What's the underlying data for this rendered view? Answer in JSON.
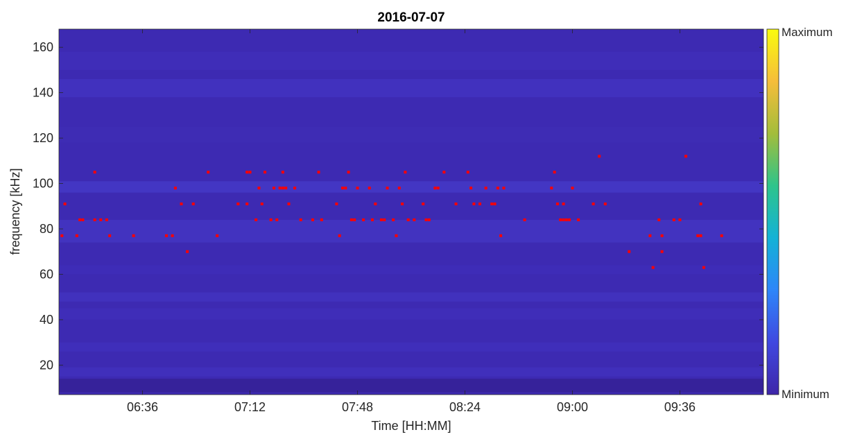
{
  "chart_data": {
    "type": "heatmap",
    "subtype": "spectrogram",
    "title": "2016-07-07",
    "xlabel": "Time [HH:MM]",
    "ylabel": "frequency [kHz]",
    "xlim": [
      "06:08",
      "10:04"
    ],
    "ylim": [
      7,
      168
    ],
    "x_ticks": [
      "06:36",
      "07:12",
      "07:48",
      "08:24",
      "09:00",
      "09:36"
    ],
    "y_ticks": [
      20,
      40,
      60,
      80,
      100,
      120,
      140,
      160
    ],
    "colorbar": {
      "colormap": "parula",
      "max_label": "Maximum",
      "min_label": "Minimum",
      "colors": [
        "#3e26a8",
        "#4048e0",
        "#2e86f9",
        "#14b2d6",
        "#2ec48b",
        "#a3bd3b",
        "#f6bd3a",
        "#f9fb0e"
      ]
    },
    "background_color": "#3d2ab2",
    "grid": false,
    "marker_color": "#ff0000",
    "detections": [
      {
        "t": "06:09",
        "f": 77
      },
      {
        "t": "06:10",
        "f": 91
      },
      {
        "t": "06:14",
        "f": 77
      },
      {
        "t": "06:15",
        "f": 84
      },
      {
        "t": "06:16",
        "f": 84
      },
      {
        "t": "06:20",
        "f": 105
      },
      {
        "t": "06:20",
        "f": 84
      },
      {
        "t": "06:22",
        "f": 84
      },
      {
        "t": "06:24",
        "f": 84
      },
      {
        "t": "06:25",
        "f": 77
      },
      {
        "t": "06:33",
        "f": 77
      },
      {
        "t": "06:44",
        "f": 77
      },
      {
        "t": "06:46",
        "f": 77
      },
      {
        "t": "06:47",
        "f": 98
      },
      {
        "t": "06:49",
        "f": 91
      },
      {
        "t": "06:51",
        "f": 70
      },
      {
        "t": "06:53",
        "f": 91
      },
      {
        "t": "06:58",
        "f": 105
      },
      {
        "t": "07:01",
        "f": 77
      },
      {
        "t": "07:08",
        "f": 91
      },
      {
        "t": "07:11",
        "f": 91
      },
      {
        "t": "07:11",
        "f": 105
      },
      {
        "t": "07:12",
        "f": 105
      },
      {
        "t": "07:14",
        "f": 84
      },
      {
        "t": "07:15",
        "f": 98
      },
      {
        "t": "07:16",
        "f": 91
      },
      {
        "t": "07:17",
        "f": 105
      },
      {
        "t": "07:19",
        "f": 84
      },
      {
        "t": "07:20",
        "f": 98
      },
      {
        "t": "07:21",
        "f": 84
      },
      {
        "t": "07:22",
        "f": 98
      },
      {
        "t": "07:23",
        "f": 98
      },
      {
        "t": "07:23",
        "f": 105
      },
      {
        "t": "07:24",
        "f": 98
      },
      {
        "t": "07:25",
        "f": 91
      },
      {
        "t": "07:27",
        "f": 98
      },
      {
        "t": "07:29",
        "f": 84
      },
      {
        "t": "07:33",
        "f": 84
      },
      {
        "t": "07:35",
        "f": 105
      },
      {
        "t": "07:36",
        "f": 84
      },
      {
        "t": "07:41",
        "f": 91
      },
      {
        "t": "07:42",
        "f": 77
      },
      {
        "t": "07:43",
        "f": 98
      },
      {
        "t": "07:44",
        "f": 98
      },
      {
        "t": "07:45",
        "f": 105
      },
      {
        "t": "07:46",
        "f": 84
      },
      {
        "t": "07:47",
        "f": 84
      },
      {
        "t": "07:48",
        "f": 98
      },
      {
        "t": "07:50",
        "f": 84
      },
      {
        "t": "07:52",
        "f": 98
      },
      {
        "t": "07:53",
        "f": 84
      },
      {
        "t": "07:54",
        "f": 91
      },
      {
        "t": "07:56",
        "f": 84
      },
      {
        "t": "07:57",
        "f": 84
      },
      {
        "t": "07:58",
        "f": 98
      },
      {
        "t": "08:00",
        "f": 84
      },
      {
        "t": "08:01",
        "f": 77
      },
      {
        "t": "08:02",
        "f": 98
      },
      {
        "t": "08:03",
        "f": 91
      },
      {
        "t": "08:04",
        "f": 105
      },
      {
        "t": "08:05",
        "f": 84
      },
      {
        "t": "08:07",
        "f": 84
      },
      {
        "t": "08:10",
        "f": 91
      },
      {
        "t": "08:11",
        "f": 84
      },
      {
        "t": "08:12",
        "f": 84
      },
      {
        "t": "08:14",
        "f": 98
      },
      {
        "t": "08:15",
        "f": 98
      },
      {
        "t": "08:17",
        "f": 105
      },
      {
        "t": "08:21",
        "f": 91
      },
      {
        "t": "08:25",
        "f": 105
      },
      {
        "t": "08:26",
        "f": 98
      },
      {
        "t": "08:27",
        "f": 91
      },
      {
        "t": "08:29",
        "f": 91
      },
      {
        "t": "08:31",
        "f": 98
      },
      {
        "t": "08:33",
        "f": 91
      },
      {
        "t": "08:34",
        "f": 91
      },
      {
        "t": "08:35",
        "f": 98
      },
      {
        "t": "08:36",
        "f": 77
      },
      {
        "t": "08:37",
        "f": 98
      },
      {
        "t": "08:44",
        "f": 84
      },
      {
        "t": "08:53",
        "f": 98
      },
      {
        "t": "08:54",
        "f": 105
      },
      {
        "t": "08:55",
        "f": 91
      },
      {
        "t": "08:56",
        "f": 84
      },
      {
        "t": "08:57",
        "f": 91
      },
      {
        "t": "08:57",
        "f": 84
      },
      {
        "t": "08:58",
        "f": 84
      },
      {
        "t": "08:59",
        "f": 84
      },
      {
        "t": "09:00",
        "f": 98
      },
      {
        "t": "09:02",
        "f": 84
      },
      {
        "t": "09:07",
        "f": 91
      },
      {
        "t": "09:09",
        "f": 112
      },
      {
        "t": "09:11",
        "f": 91
      },
      {
        "t": "09:19",
        "f": 70
      },
      {
        "t": "09:26",
        "f": 77
      },
      {
        "t": "09:27",
        "f": 63
      },
      {
        "t": "09:29",
        "f": 84
      },
      {
        "t": "09:30",
        "f": 77
      },
      {
        "t": "09:30",
        "f": 70
      },
      {
        "t": "09:34",
        "f": 84
      },
      {
        "t": "09:36",
        "f": 84
      },
      {
        "t": "09:38",
        "f": 112
      },
      {
        "t": "09:42",
        "f": 77
      },
      {
        "t": "09:43",
        "f": 77
      },
      {
        "t": "09:43",
        "f": 91
      },
      {
        "t": "09:44",
        "f": 63
      },
      {
        "t": "09:50",
        "f": 77
      }
    ]
  }
}
